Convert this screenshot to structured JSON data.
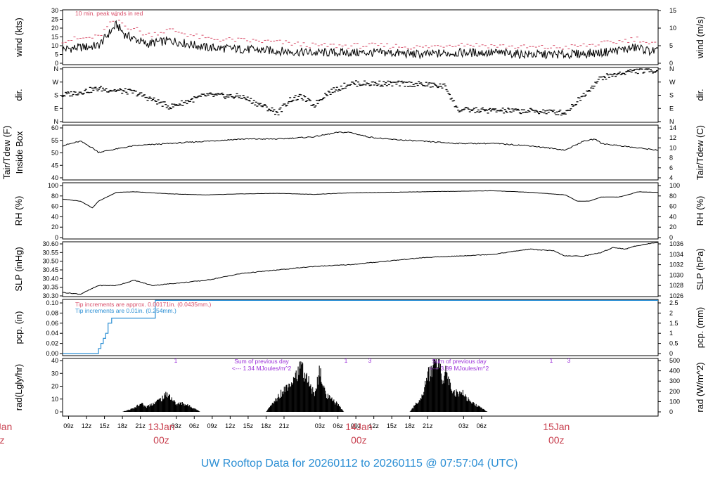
{
  "footer": {
    "title": "UW Rooftop Data for 20260112  to  20260115 @ 07:57:04  (UTC)",
    "color": "#2a8ed4"
  },
  "time_axis": {
    "ticks": [
      "09z",
      "12z",
      "15z",
      "18z",
      "21z",
      "03z",
      "06z",
      "09z",
      "12z",
      "15z",
      "18z",
      "21z",
      "03z",
      "06z",
      "09z",
      "12z",
      "15z",
      "18z",
      "21z",
      "03z",
      "06z"
    ],
    "day_labels": [
      {
        "date": "13Jan",
        "hour": "00z"
      },
      {
        "date": "14Jan",
        "hour": "00z"
      },
      {
        "date": "15Jan",
        "hour": "00z"
      }
    ],
    "cut_label": {
      "date": "Jan",
      "hour": "z"
    },
    "day_label_color": "#c8404f"
  },
  "colors": {
    "trace": "#000000",
    "peak": "#d94f6a",
    "purple": "#9b30d9",
    "blue": "#2a8ed4"
  },
  "chart_data": [
    {
      "type": "line",
      "ylabel": "wind (kts)",
      "ylabel_right": "wind (m/s)",
      "ylim": [
        0,
        30
      ],
      "left_ticks": [
        "30",
        "25",
        "20",
        "15",
        "10",
        "5",
        "0"
      ],
      "right_ticks": [
        "15",
        "10",
        "5",
        "0"
      ],
      "annotation": "10 min. peak winds in red",
      "x_hours": [
        0,
        3,
        6,
        9,
        10.5,
        12,
        14,
        18,
        24,
        30,
        36,
        42,
        48,
        54,
        60,
        66,
        72,
        78,
        84,
        90,
        96,
        97,
        98,
        99.5
      ],
      "values": [
        8,
        9,
        10,
        22,
        16,
        14,
        11,
        13,
        9,
        8,
        7,
        6,
        6,
        6,
        5,
        6,
        6,
        5,
        5,
        6,
        9,
        8,
        7,
        7
      ],
      "peak_values": [
        13,
        14,
        15,
        26,
        21,
        20,
        16,
        19,
        14,
        13,
        12,
        10,
        10,
        10,
        9,
        11,
        10,
        9,
        9,
        11,
        14,
        13,
        11,
        11
      ]
    },
    {
      "type": "scatter",
      "ylabel": "dir.",
      "ylabel_right": "dir.",
      "left_ticks": [
        "N",
        "W",
        "S",
        "E",
        "N"
      ],
      "right_ticks": [
        "N",
        "W",
        "S",
        "E",
        "N"
      ],
      "x_hours": [
        0,
        6,
        12,
        18,
        24,
        30,
        36,
        38,
        40,
        42,
        44,
        48,
        54,
        60,
        64,
        66,
        72,
        80,
        84,
        90,
        95,
        99.5
      ],
      "values_deg": [
        180,
        225,
        200,
        100,
        180,
        170,
        60,
        150,
        170,
        110,
        190,
        260,
        260,
        255,
        240,
        80,
        75,
        70,
        60,
        300,
        345,
        350
      ]
    },
    {
      "type": "line",
      "ylabel": "Tair/Tdew (F)",
      "ylabel2": "Inside Box",
      "ylabel_right": "Tair/Tdew (C)",
      "ylim": [
        37.5,
        60
      ],
      "left_ticks": [
        "60",
        "55",
        "50",
        "45",
        "40"
      ],
      "right_ticks": [
        "14",
        "12",
        "10",
        "8",
        "6",
        "4"
      ],
      "x_hours": [
        0,
        3,
        5,
        6,
        12,
        18,
        24,
        30,
        36,
        42,
        46,
        48,
        51,
        54,
        60,
        66,
        72,
        78,
        84,
        87,
        89,
        90,
        96,
        99.5
      ],
      "values": [
        52,
        54,
        51,
        49,
        52,
        53,
        54,
        55,
        55,
        56,
        58,
        58,
        56,
        55,
        54,
        53,
        53,
        52,
        50,
        54,
        55,
        53,
        51,
        50
      ]
    },
    {
      "type": "line",
      "ylabel": "RH (%)",
      "ylabel_right": "RH (%)",
      "ylim": [
        0,
        100
      ],
      "left_ticks": [
        "100",
        "80",
        "60",
        "40",
        "20",
        "0"
      ],
      "right_ticks": [
        "100",
        "80",
        "60",
        "40",
        "20",
        "0"
      ],
      "x_hours": [
        0,
        3,
        5,
        6,
        9,
        12,
        18,
        24,
        30,
        36,
        42,
        48,
        54,
        60,
        66,
        72,
        78,
        84,
        86,
        88,
        90,
        93,
        95,
        96,
        99.5
      ],
      "values": [
        74,
        70,
        57,
        70,
        87,
        88,
        84,
        82,
        84,
        85,
        83,
        86,
        87,
        88,
        89,
        90,
        87,
        82,
        70,
        70,
        78,
        78,
        84,
        88,
        87
      ]
    },
    {
      "type": "line",
      "ylabel": "SLP (inHg)",
      "ylabel_right": "SLP (hPa)",
      "ylim": [
        30.3,
        30.6
      ],
      "left_ticks": [
        "30.60",
        "30.55",
        "30.50",
        "30.45",
        "30.40",
        "30.35",
        "30.30"
      ],
      "right_ticks": [
        "1036",
        "1034",
        "1032",
        "1030",
        "1028",
        "1026"
      ],
      "x_hours": [
        0,
        3,
        6,
        9,
        12,
        15,
        18,
        24,
        30,
        36,
        42,
        48,
        54,
        60,
        66,
        72,
        78,
        82,
        84,
        87,
        90,
        92,
        94,
        96,
        99.5
      ],
      "values": [
        30.32,
        30.31,
        30.36,
        30.36,
        30.39,
        30.36,
        30.37,
        30.39,
        30.43,
        30.45,
        30.47,
        30.48,
        30.5,
        30.52,
        30.53,
        30.54,
        30.57,
        30.56,
        30.53,
        30.53,
        30.55,
        30.58,
        30.57,
        30.59,
        30.61
      ]
    },
    {
      "type": "line",
      "ylabel": "pcp. (in)",
      "ylabel_right": "pcp. (mm)",
      "ylim": [
        0,
        0.1
      ],
      "left_ticks": [
        "0.10",
        "0.08",
        "0.06",
        "0.04",
        "0.02",
        "0.00"
      ],
      "right_ticks": [
        "2.5",
        "2",
        "1.5",
        "1",
        "0.5",
        "0"
      ],
      "notes": [
        "Tip increments are approx. 0.00171in. (0.0435mm.)",
        "Tip increments are 0.01in. (0.254mm.)"
      ],
      "x_hours": [
        0,
        6,
        6,
        6.4,
        6.4,
        6.8,
        6.8,
        7.2,
        7.2,
        7.6,
        7.6,
        8.2,
        8.2,
        15.5,
        15.5,
        99.5
      ],
      "values": [
        0,
        0,
        0.01,
        0.01,
        0.02,
        0.02,
        0.03,
        0.03,
        0.04,
        0.04,
        0.06,
        0.06,
        0.07,
        0.07,
        0.11,
        0.11
      ]
    },
    {
      "type": "area",
      "ylabel": "rad(Lgly/hr)",
      "ylabel_right": "rad (W/m^2)",
      "ylim": [
        0,
        40
      ],
      "left_ticks": [
        "40",
        "30",
        "20",
        "10",
        "0"
      ],
      "right_ticks": [
        "500",
        "400",
        "300",
        "200",
        "100",
        "0"
      ],
      "day_sums": [
        {
          "line1": "Sum of previous day",
          "line2": "<--- 1.34 MJoules/m^2"
        },
        {
          "line1": "Sum of previous day",
          "line2": "<--- 3.89 MJoules/m^2"
        }
      ],
      "markers": [
        "1",
        "1",
        "3",
        "1",
        "3"
      ],
      "x_hours": [
        10,
        12,
        13,
        14,
        16,
        17,
        17.5,
        19,
        20,
        22,
        23,
        34,
        36,
        38,
        39,
        40,
        41,
        42,
        43,
        44,
        46,
        47,
        58,
        60,
        61,
        62,
        63,
        63.5,
        64,
        65,
        66,
        67,
        68,
        70,
        71
      ],
      "values": [
        0,
        3,
        7,
        4,
        9,
        12,
        15,
        6,
        7,
        3,
        0,
        0,
        12,
        24,
        30,
        35,
        25,
        14,
        32,
        13,
        6,
        0,
        0,
        12,
        28,
        40,
        46,
        20,
        38,
        18,
        14,
        15,
        8,
        3,
        0
      ]
    }
  ]
}
